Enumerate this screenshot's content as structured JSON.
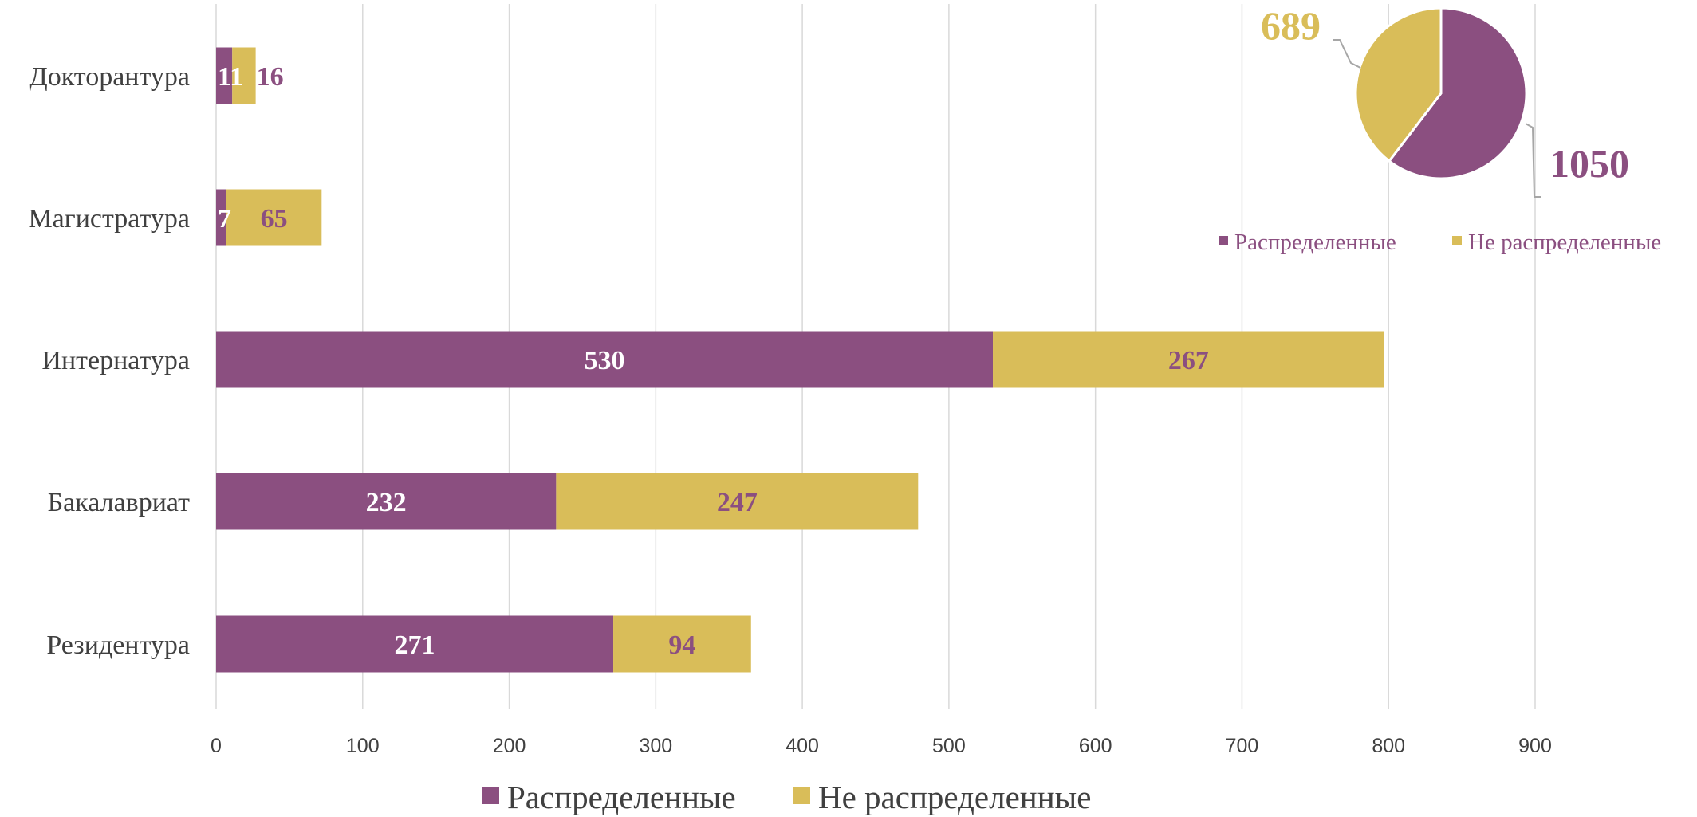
{
  "colors": {
    "distributed": "#8b4f80",
    "undistributed": "#d9bd59",
    "grid": "#d9d9d9",
    "axis_text": "#404040",
    "label_on_dark": "#ffffff"
  },
  "chart_data": [
    {
      "type": "bar",
      "orientation": "horizontal",
      "stacked": true,
      "categories": [
        "Докторантура",
        "Магистратура",
        "Интернатура",
        "Бакалавриат",
        "Резидентура"
      ],
      "series": [
        {
          "name": "Распределенные",
          "values": [
            11,
            7,
            530,
            232,
            271
          ]
        },
        {
          "name": "Не распределенные",
          "values": [
            16,
            65,
            267,
            247,
            94
          ]
        }
      ],
      "xlim": [
        0,
        900
      ],
      "x_ticks": [
        0,
        100,
        200,
        300,
        400,
        500,
        600,
        700,
        800,
        900
      ],
      "grid": true,
      "legend": {
        "position": "bottom",
        "labels": [
          "Распределенные",
          "Не распределенные"
        ]
      },
      "title": "",
      "xlabel": "",
      "ylabel": ""
    },
    {
      "type": "pie",
      "labels": [
        "Распределенные",
        "Не распределенные"
      ],
      "values": [
        1050,
        689
      ],
      "value_labels": [
        "1050",
        "689"
      ],
      "legend": {
        "position": "bottom",
        "labels": [
          "Распределенные",
          "Не распределенные"
        ]
      }
    }
  ]
}
